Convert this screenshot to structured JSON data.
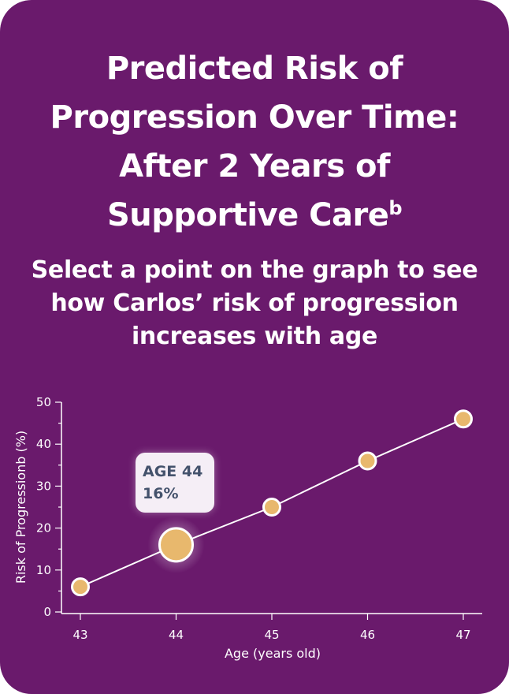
{
  "title": "Predicted Risk of Progression Over Time: After 2 Years of Supportive Care",
  "title_superscript": "b",
  "subtitle": "Select a point on the graph to see how Carlos’ risk of progression increases with age",
  "tooltip": {
    "line1": "AGE 44",
    "line2": "16%"
  },
  "colors": {
    "background": "#6a1a6c",
    "point": "#e8b86d",
    "line": "#ffffff",
    "tooltip_bg": "#f5eef6",
    "tooltip_text": "#44526c"
  },
  "chart_data": {
    "type": "line",
    "x": [
      43,
      44,
      45,
      46,
      47
    ],
    "y": [
      6,
      16,
      25,
      36,
      46
    ],
    "selected_x": 44,
    "xlabel": "Age (years old)",
    "ylabel": "Risk of Progressionb (%)",
    "xlim": [
      43,
      47
    ],
    "ylim": [
      0,
      50
    ],
    "yticks": [
      0,
      10,
      20,
      30,
      40,
      50
    ],
    "xticks": [
      43,
      44,
      45,
      46,
      47
    ],
    "grid": false,
    "legend": "none"
  }
}
